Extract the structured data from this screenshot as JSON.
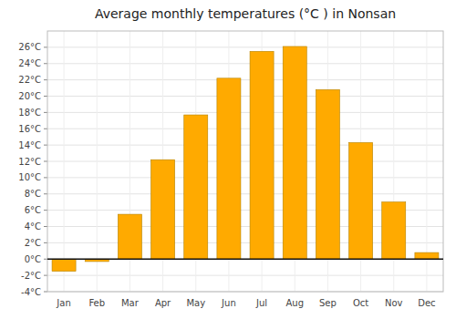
{
  "chart_data": {
    "type": "bar",
    "title": "Average monthly temperatures (°C ) in Nonsan",
    "categories": [
      "Jan",
      "Feb",
      "Mar",
      "Apr",
      "May",
      "Jun",
      "Jul",
      "Aug",
      "Sep",
      "Oct",
      "Nov",
      "Dec"
    ],
    "values": [
      -1.5,
      -0.3,
      5.5,
      12.2,
      17.7,
      22.2,
      25.5,
      26.1,
      20.8,
      14.3,
      7.0,
      0.8
    ],
    "color": "#FFAA00",
    "ylim": [
      -4,
      28
    ],
    "yticks": [
      {
        "value": -4,
        "label": "-4°C"
      },
      {
        "value": -2,
        "label": "-2°C"
      },
      {
        "value": 0,
        "label": "0°C"
      },
      {
        "value": 2,
        "label": "2°C"
      },
      {
        "value": 4,
        "label": "4°C"
      },
      {
        "value": 6,
        "label": "6°C"
      },
      {
        "value": 8,
        "label": "8°C"
      },
      {
        "value": 10,
        "label": "10°C"
      },
      {
        "value": 12,
        "label": "12°C"
      },
      {
        "value": 14,
        "label": "14°C"
      },
      {
        "value": 16,
        "label": "16°C"
      },
      {
        "value": 18,
        "label": "18°C"
      },
      {
        "value": 20,
        "label": "20°C"
      },
      {
        "value": 22,
        "label": "22°C"
      },
      {
        "value": 24,
        "label": "24°C"
      },
      {
        "value": 26,
        "label": "26°C"
      }
    ],
    "grid": true
  }
}
